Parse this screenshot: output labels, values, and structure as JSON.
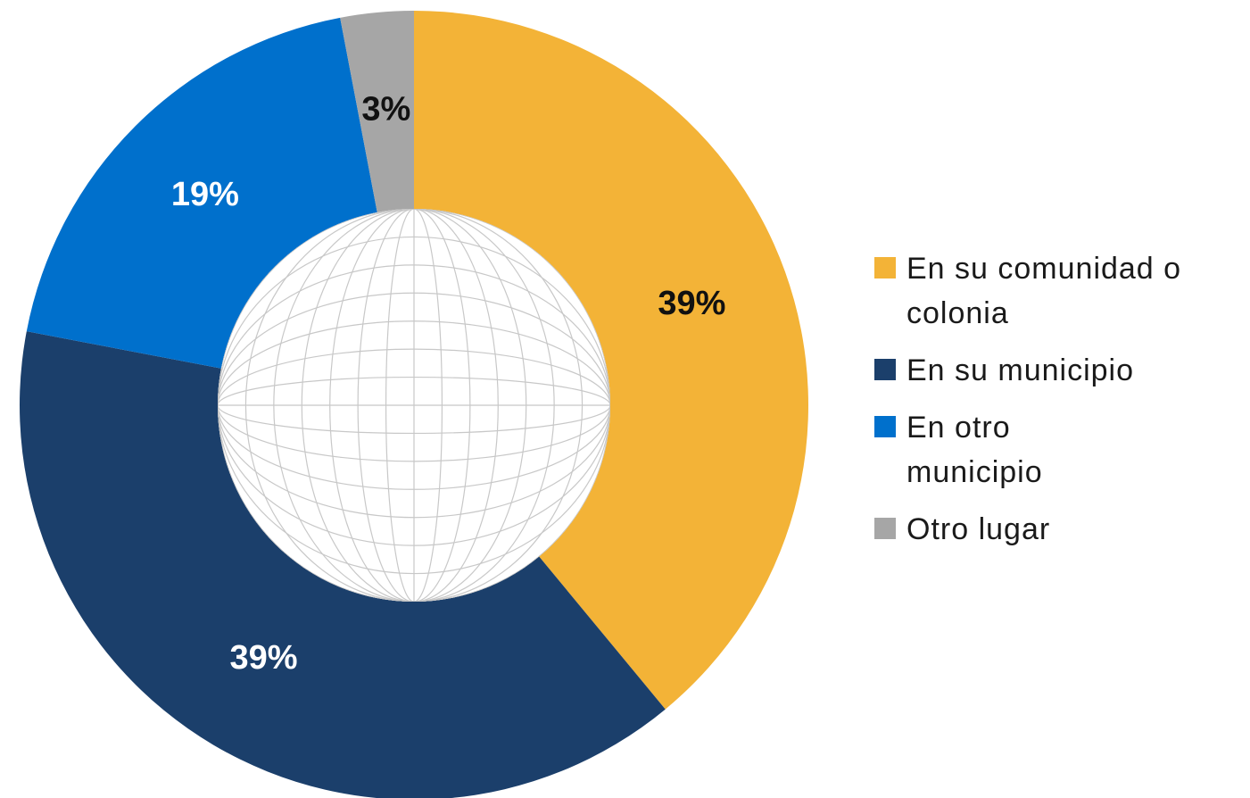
{
  "chart_data": {
    "type": "donut",
    "categories": [
      "En su comunidad o colonia",
      "En su municipio",
      "En otro municipio",
      "Otro lugar"
    ],
    "values": [
      39,
      39,
      19,
      3
    ],
    "value_labels": [
      "39%",
      "39%",
      "19%",
      "3%"
    ],
    "colors": [
      "#f3b337",
      "#1b3f6b",
      "#0070cc",
      "#a6a6a6"
    ],
    "legend": "right"
  }
}
